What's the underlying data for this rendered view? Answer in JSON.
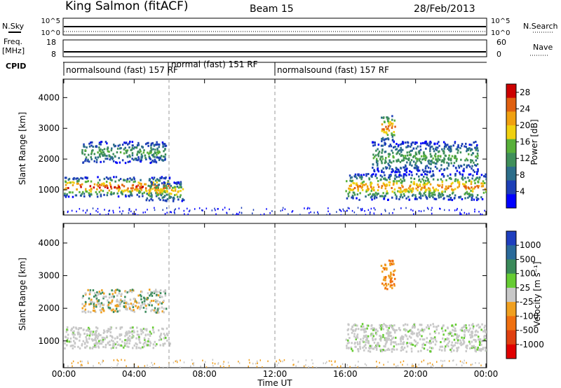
{
  "header": {
    "station": "King Salmon (fitACF)",
    "beam": "Beam 15",
    "date": "28/Feb/2013"
  },
  "strips": {
    "nsky_label": "N.Sky",
    "nsearch_label": "N.Search",
    "nsky_ticks": [
      "10^5",
      "10^0"
    ],
    "freq_label": "Freq.",
    "freq_unit": "[MHz]",
    "freq_ticks": [
      "18",
      "8"
    ],
    "nave_label": "Nave",
    "nave_ticks": [
      "60",
      "0"
    ],
    "cpid_label": "CPID",
    "cpid_segments": [
      {
        "label": "normalsound (fast) 157 RF",
        "start": "00:00",
        "end": "06:00"
      },
      {
        "label": "normal (fast) 151 RF",
        "start": "06:00",
        "end": "12:00"
      },
      {
        "label": "normalsound (fast) 157 RF",
        "start": "12:00",
        "end": "24:00"
      }
    ]
  },
  "chart_data": [
    {
      "type": "heatmap",
      "title": "Power",
      "ylabel": "Slant Range [km]",
      "xlabel": "Time UT",
      "x_ticks": [
        "00:00",
        "04:00",
        "08:00",
        "12:00",
        "16:00",
        "20:00",
        "00:00"
      ],
      "y_ticks": [
        1000,
        2000,
        3000,
        4000
      ],
      "xlim_hours": [
        0,
        24
      ],
      "ylim_km": [
        180,
        4600
      ],
      "colorbar": {
        "label": "Power [dB]",
        "ticks": [
          4,
          8,
          12,
          16,
          20,
          24,
          28
        ],
        "range": [
          0,
          30
        ],
        "colors": [
          "#0000ff",
          "#1d3fb7",
          "#2d6e8a",
          "#3f8f5a",
          "#58b03a",
          "#f0d010",
          "#f0a010",
          "#e06010",
          "#cc0000"
        ]
      },
      "dashed_lines_hours": [
        6,
        12
      ],
      "echo_regions": [
        {
          "t_start": 0,
          "t_end": 6.0,
          "range_km": [
            800,
            1450
          ],
          "peak_power_db": 26
        },
        {
          "t_start": 1.0,
          "t_end": 5.8,
          "range_km": [
            1900,
            2600
          ],
          "peak_power_db": 12
        },
        {
          "t_start": 4.6,
          "t_end": 6.8,
          "range_km": [
            650,
            1300
          ],
          "peak_power_db": 20
        },
        {
          "t_start": 16.0,
          "t_end": 24.0,
          "range_km": [
            700,
            1550
          ],
          "peak_power_db": 22
        },
        {
          "t_start": 17.5,
          "t_end": 23.5,
          "range_km": [
            1600,
            2600
          ],
          "peak_power_db": 12
        },
        {
          "t_start": 18.0,
          "t_end": 18.8,
          "range_km": [
            2600,
            3500
          ],
          "peak_power_db": 24
        }
      ]
    },
    {
      "type": "heatmap",
      "title": "Velocity",
      "ylabel": "Slant Range [km]",
      "xlabel": "Time UT",
      "x_ticks": [
        "00:00",
        "04:00",
        "08:00",
        "12:00",
        "16:00",
        "20:00",
        "00:00"
      ],
      "y_ticks": [
        1000,
        2000,
        3000,
        4000
      ],
      "xlim_hours": [
        0,
        24
      ],
      "ylim_km": [
        180,
        4600
      ],
      "colorbar": {
        "label": "Velocity [m s⁻¹]",
        "ticks": [
          "1000",
          "500",
          "100",
          "25",
          "-25",
          "-100",
          "-500",
          "-1000"
        ],
        "colors": [
          "#1f3fbf",
          "#2a6a9a",
          "#3a8a5a",
          "#66cc33",
          "#c8c8c8",
          "#f0a020",
          "#f07010",
          "#e04010",
          "#e00000"
        ]
      },
      "dashed_lines_hours": [
        6,
        12
      ],
      "echo_regions": [
        {
          "t_start": 0,
          "t_end": 6.0,
          "range_km": [
            800,
            1450
          ],
          "velocity": "ground scatter"
        },
        {
          "t_start": 1.0,
          "t_end": 5.8,
          "range_km": [
            1900,
            2600
          ],
          "velocity": "low"
        },
        {
          "t_start": 16.0,
          "t_end": 24.0,
          "range_km": [
            700,
            1550
          ],
          "velocity": "ground scatter"
        },
        {
          "t_start": 18.0,
          "t_end": 18.8,
          "range_km": [
            2600,
            3500
          ],
          "velocity": "-100 to -500"
        }
      ]
    }
  ]
}
